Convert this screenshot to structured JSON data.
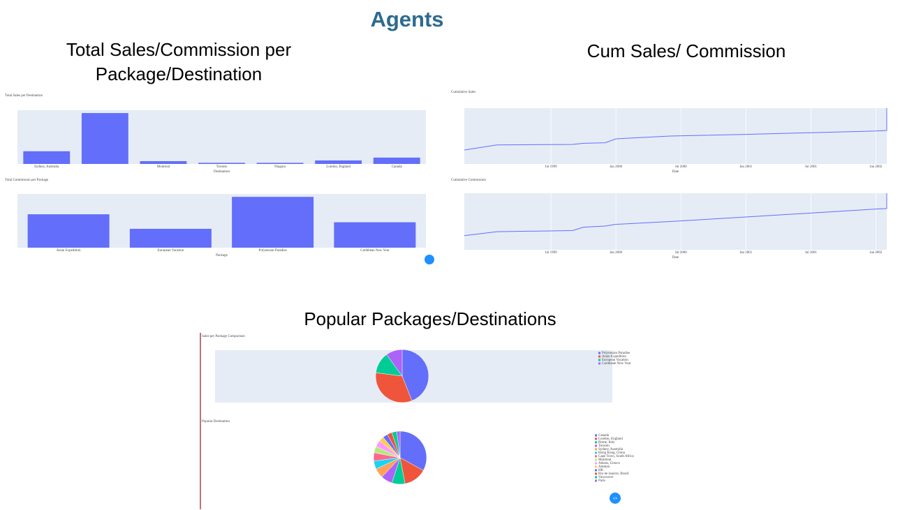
{
  "title": "Agents",
  "section_titles": [
    "Total Sales/Commission per Package/Destination",
    "Cum Sales/ Commission",
    "Popular Packages/Destinations"
  ],
  "chart_data": [
    {
      "type": "bar",
      "title": "Total Sales per Destination",
      "x_label": "Destination",
      "categories": [
        "Sydney, Australia",
        null,
        "Montreal",
        "Toronto",
        "Niagara",
        "London, England",
        "Canada"
      ],
      "values": [
        90,
        360,
        20,
        8,
        8,
        25,
        45
      ],
      "color": "#636efa",
      "ylim": [
        0,
        380
      ]
    },
    {
      "type": "bar",
      "title": "Total Commission per Package",
      "x_label": "Package",
      "categories": [
        "Asian Expedition",
        "European Vacation",
        "Polynesian Paradise",
        "Caribbean New Year"
      ],
      "values": [
        230,
        130,
        350,
        175
      ],
      "color": "#636efa",
      "ylim": [
        0,
        370
      ]
    },
    {
      "type": "line",
      "title": "Cumulative Sales",
      "x_label": "Date",
      "x": [
        "1998-11",
        "1999-02",
        "1999-09",
        "1999-10",
        "1999-12",
        "2000-01",
        "2000-06",
        "2001-01",
        "2001-07",
        "2002-01",
        "2002-02",
        "2002-02"
      ],
      "values": [
        25,
        34,
        35,
        37,
        38,
        45,
        50,
        53,
        56,
        59,
        60,
        100
      ],
      "color": "#636efa",
      "xlim": [
        "1998-11",
        "2002-02"
      ],
      "ylim": [
        0,
        100
      ],
      "xticks": [
        {
          "value": "1999-07",
          "label": "Jul 1999"
        },
        {
          "value": "2000-01",
          "label": "Jan 2000"
        },
        {
          "value": "2000-07",
          "label": "Jul 2000"
        },
        {
          "value": "2001-01",
          "label": "Jan 2001"
        },
        {
          "value": "2001-07",
          "label": "Jul 2001"
        },
        {
          "value": "2002-01",
          "label": "Jan 2002"
        }
      ]
    },
    {
      "type": "line",
      "title": "Cumulative Commission",
      "x_label": "Date",
      "x": [
        "1998-11",
        "1999-02",
        "1999-09",
        "1999-10",
        "1999-12",
        "2000-01",
        "2000-06",
        "2001-01",
        "2001-07",
        "2002-01",
        "2002-02",
        "2002-02"
      ],
      "values": [
        25,
        32,
        34,
        40,
        42,
        45,
        50,
        58,
        65,
        72,
        73,
        100
      ],
      "color": "#636efa",
      "xlim": [
        "1998-11",
        "2002-02"
      ],
      "ylim": [
        0,
        100
      ],
      "xticks": [
        {
          "value": "1999-07",
          "label": "Jul 1999"
        },
        {
          "value": "2000-01",
          "label": "Jan 2000"
        },
        {
          "value": "2000-07",
          "label": "Jul 2000"
        },
        {
          "value": "2001-01",
          "label": "Jan 2001"
        },
        {
          "value": "2001-07",
          "label": "Jul 2001"
        },
        {
          "value": "2002-01",
          "label": "Jan 2002"
        }
      ]
    },
    {
      "type": "pie",
      "title": "Sales per Package Comparison",
      "categories": [
        "Polynesian Paradise",
        "Asian Expedition",
        "European Vacation",
        "Caribbean New Year"
      ],
      "values": [
        44,
        33,
        13,
        10
      ],
      "colors": [
        "#636efa",
        "#ef553b",
        "#00cc96",
        "#ab63fa"
      ]
    },
    {
      "type": "pie",
      "title": "Popular Destination",
      "categories": [
        "Canada",
        "London, England",
        "Rome, Italy",
        "Toronto",
        "Sydney, Australia",
        "Hong Kong, China",
        "Cape Town, South Africa",
        "Montreal",
        "Athens, Greece",
        "Amman",
        "HK",
        "Rio de Janeiro, Brazil",
        "Vancouver",
        "Paris"
      ],
      "values": [
        33,
        14,
        8,
        7,
        6,
        5,
        5,
        4,
        4,
        3,
        3,
        3,
        3,
        2
      ],
      "colors": [
        "#636efa",
        "#ef553b",
        "#00cc96",
        "#ab63fa",
        "#ffa15a",
        "#19d3f3",
        "#ff6692",
        "#b6e880",
        "#ff97ff",
        "#fecb52",
        "#636efa",
        "#ef553b",
        "#00cc96",
        "#ab63fa"
      ]
    }
  ]
}
